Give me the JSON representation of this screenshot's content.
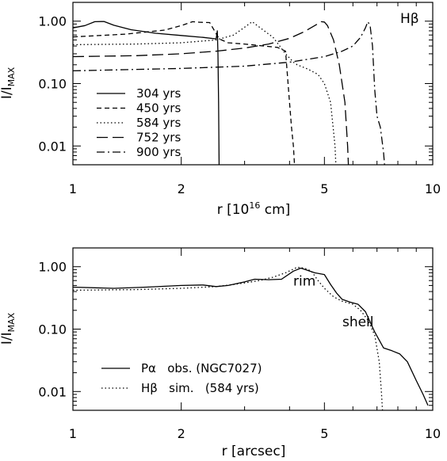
{
  "chart_data": [
    {
      "type": "line",
      "xscale": "log",
      "yscale": "log",
      "xlim": [
        1,
        10
      ],
      "ylim": [
        0.005,
        2.0
      ],
      "x_ticks": [
        {
          "value": 1,
          "label": "1"
        },
        {
          "value": 2,
          "label": "2"
        },
        {
          "value": 5,
          "label": "5"
        },
        {
          "value": 10,
          "label": "10"
        }
      ],
      "y_ticks": [
        {
          "value": 0.01,
          "label": "0.01"
        },
        {
          "value": 0.1,
          "label": "0.10"
        },
        {
          "value": 1.0,
          "label": "1.00"
        }
      ],
      "xlabel": "r [10",
      "xlabel_sup": "16",
      "xlabel_rest": " cm]",
      "ylabel_main": "I/I",
      "ylabel_sub": "MAX",
      "annotation": "Hβ",
      "legend_position": "lower-left",
      "series": [
        {
          "name": "304 yrs",
          "dash": "solid",
          "x": [
            1.0,
            1.08,
            1.15,
            1.22,
            1.3,
            1.45,
            1.7,
            2.0,
            2.3,
            2.5,
            2.52,
            2.53,
            2.54,
            2.55
          ],
          "y": [
            0.78,
            0.85,
            0.98,
            0.99,
            0.86,
            0.73,
            0.64,
            0.59,
            0.55,
            0.52,
            0.7,
            0.3,
            0.05,
            0.003
          ]
        },
        {
          "name": "450 yrs",
          "dash": "short",
          "x": [
            1.0,
            1.4,
            1.8,
            2.0,
            2.15,
            2.25,
            2.4,
            2.55,
            2.7,
            3.0,
            3.4,
            3.7,
            3.9,
            4.0,
            4.05,
            4.1,
            4.15
          ],
          "y": [
            0.56,
            0.62,
            0.72,
            0.85,
            0.98,
            0.96,
            0.95,
            0.52,
            0.45,
            0.43,
            0.4,
            0.38,
            0.33,
            0.05,
            0.02,
            0.01,
            0.003
          ]
        },
        {
          "name": "584 yrs",
          "dash": "dot",
          "x": [
            1.0,
            1.5,
            2.0,
            2.5,
            2.8,
            3.0,
            3.15,
            3.3,
            3.6,
            3.9,
            4.1,
            4.2,
            4.5,
            4.8,
            5.0,
            5.2,
            5.35,
            5.38,
            5.4
          ],
          "y": [
            0.42,
            0.43,
            0.45,
            0.5,
            0.6,
            0.8,
            0.98,
            0.8,
            0.55,
            0.3,
            0.22,
            0.2,
            0.17,
            0.14,
            0.1,
            0.05,
            0.01,
            0.005,
            0.003
          ]
        },
        {
          "name": "752 yrs",
          "dash": "long",
          "x": [
            1.0,
            1.5,
            2.0,
            2.5,
            3.0,
            3.5,
            4.0,
            4.4,
            4.7,
            4.9,
            5.0,
            5.1,
            5.3,
            5.5,
            5.7,
            5.8,
            5.85
          ],
          "y": [
            0.27,
            0.28,
            0.3,
            0.33,
            0.37,
            0.43,
            0.53,
            0.68,
            0.85,
            0.98,
            0.97,
            0.85,
            0.5,
            0.2,
            0.05,
            0.01,
            0.003
          ]
        },
        {
          "name": "900 yrs",
          "dash": "dashdot",
          "x": [
            1.0,
            2.0,
            3.0,
            4.0,
            5.0,
            5.6,
            6.0,
            6.3,
            6.5,
            6.6,
            6.7,
            6.8,
            6.9,
            7.0,
            7.15,
            7.3,
            7.4
          ],
          "y": [
            0.16,
            0.175,
            0.19,
            0.22,
            0.27,
            0.33,
            0.4,
            0.55,
            0.78,
            0.98,
            0.85,
            0.4,
            0.08,
            0.03,
            0.02,
            0.008,
            0.003
          ]
        }
      ]
    },
    {
      "type": "line",
      "xscale": "log",
      "yscale": "log",
      "xlim": [
        1,
        10
      ],
      "ylim": [
        0.005,
        2.0
      ],
      "x_ticks": [
        {
          "value": 1,
          "label": "1"
        },
        {
          "value": 2,
          "label": "2"
        },
        {
          "value": 5,
          "label": "5"
        },
        {
          "value": 10,
          "label": "10"
        }
      ],
      "y_ticks": [
        {
          "value": 0.01,
          "label": "0.01"
        },
        {
          "value": 0.1,
          "label": "0.10"
        },
        {
          "value": 1.0,
          "label": "1.00"
        }
      ],
      "xlabel": "r [arcsec]",
      "ylabel_main": "I/I",
      "ylabel_sub": "MAX",
      "legend_position": "lower-left",
      "annotations": [
        {
          "text": "rim",
          "x": 4.4,
          "y": 0.5
        },
        {
          "text": "shell",
          "x": 6.2,
          "y": 0.11
        }
      ],
      "series": [
        {
          "name": "Pα   obs. (NGC7027)",
          "dash": "solid",
          "x": [
            1.0,
            1.3,
            1.6,
            2.0,
            2.3,
            2.5,
            2.7,
            3.0,
            3.2,
            3.5,
            3.8,
            4.1,
            4.3,
            4.5,
            4.7,
            5.0,
            5.2,
            5.4,
            5.6,
            5.9,
            6.2,
            6.5,
            6.9,
            7.3,
            7.7,
            8.1,
            8.5,
            9.0,
            9.4,
            9.7
          ],
          "y": [
            0.47,
            0.45,
            0.47,
            0.5,
            0.51,
            0.48,
            0.5,
            0.57,
            0.63,
            0.62,
            0.63,
            0.85,
            0.95,
            0.87,
            0.8,
            0.75,
            0.52,
            0.38,
            0.3,
            0.27,
            0.25,
            0.19,
            0.09,
            0.05,
            0.045,
            0.04,
            0.03,
            0.015,
            0.009,
            0.006
          ]
        },
        {
          "name": "Hβ   sim.   (584 yrs)",
          "dash": "dot",
          "x": [
            1.0,
            1.5,
            2.0,
            2.5,
            2.8,
            3.0,
            3.3,
            3.6,
            3.9,
            4.2,
            4.4,
            4.6,
            4.8,
            5.0,
            5.3,
            5.6,
            6.0,
            6.3,
            6.6,
            6.9,
            7.1,
            7.2,
            7.25
          ],
          "y": [
            0.42,
            0.43,
            0.45,
            0.48,
            0.52,
            0.55,
            0.6,
            0.68,
            0.8,
            0.98,
            0.95,
            0.85,
            0.6,
            0.45,
            0.33,
            0.28,
            0.25,
            0.2,
            0.14,
            0.08,
            0.03,
            0.01,
            0.005
          ]
        }
      ]
    }
  ]
}
